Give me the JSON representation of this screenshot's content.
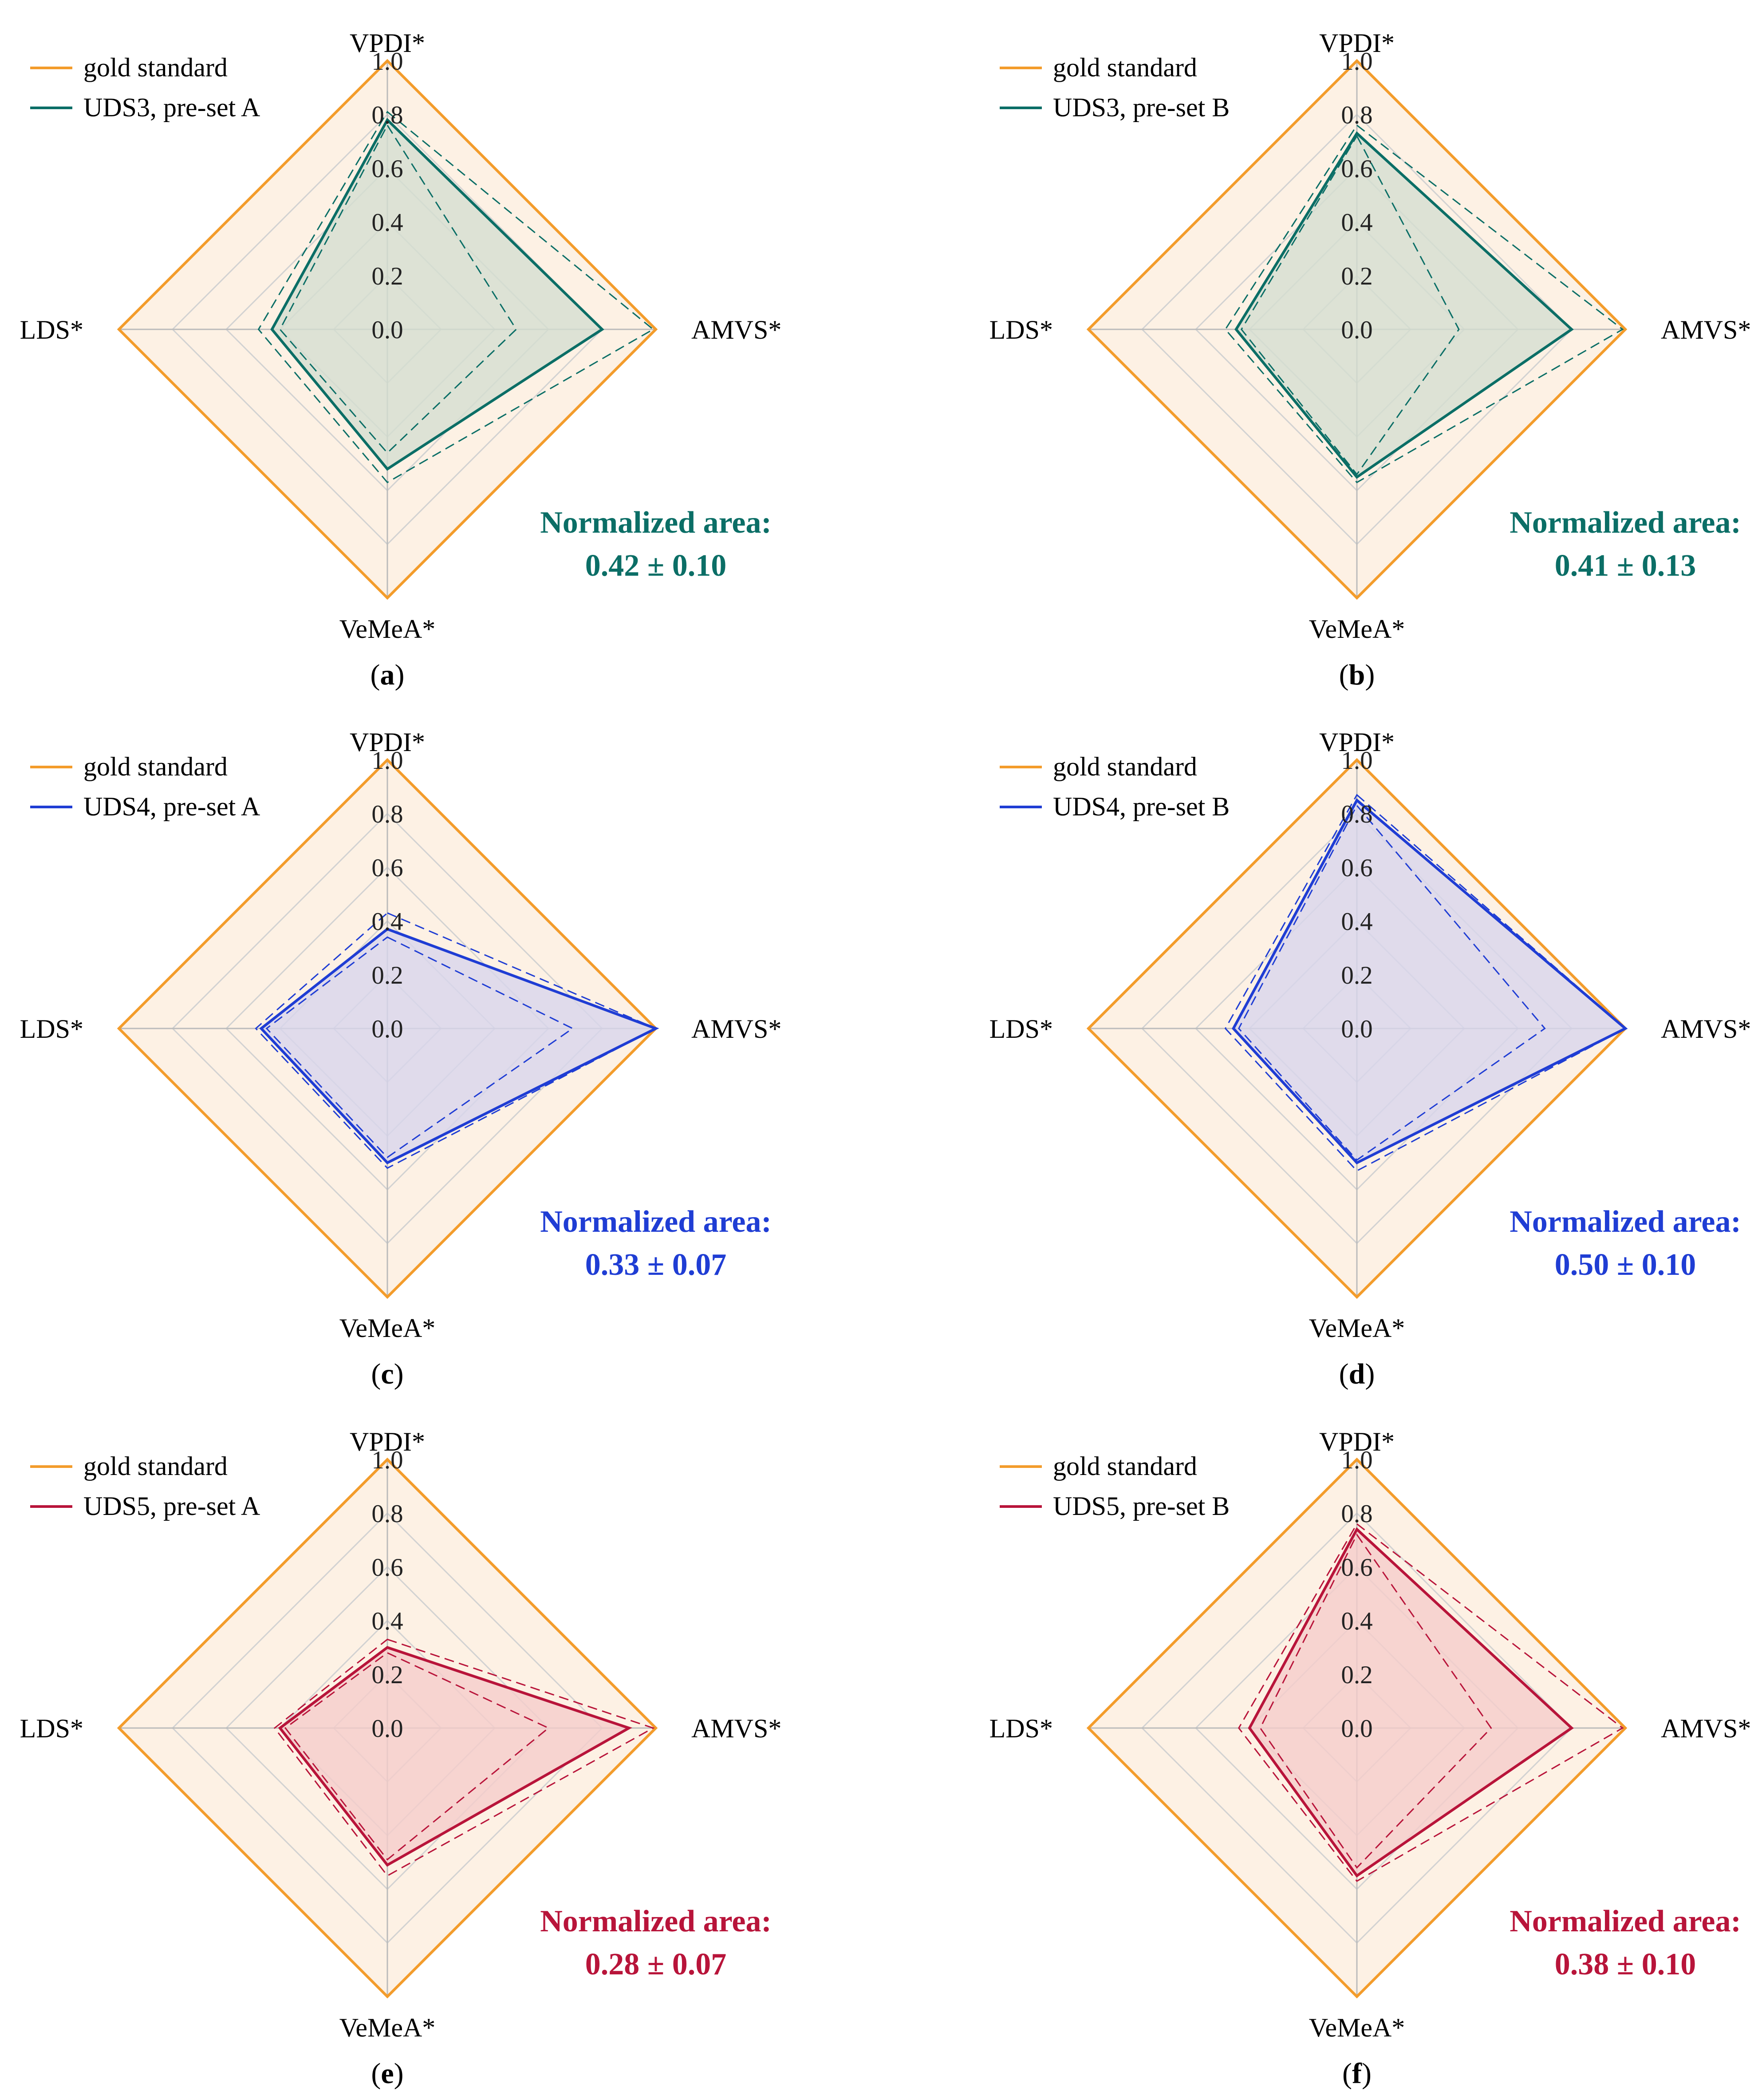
{
  "colors": {
    "gold": "#F39C2B",
    "gold_fill": "#FDF1E4",
    "grid": "#D2D2D2",
    "spoke": "#BBBBBB",
    "teal": "#0B6E66",
    "teal_fill": "#D5DFD1",
    "blue": "#1F3DD4",
    "blue_fill": "#D8D6EC",
    "red": "#B8143A",
    "red_fill": "#F5CDCB"
  },
  "chart_data": [
    {
      "type": "radar",
      "panel_label": "a",
      "axes": [
        "VPDI*",
        "AMVS*",
        "VeMeA*",
        "LDS*"
      ],
      "ticks": [
        "0.0",
        "0.2",
        "0.4",
        "0.6",
        "0.8",
        "1.0"
      ],
      "range": [
        0,
        1
      ],
      "legend": [
        "gold standard",
        "UDS3, pre-set A"
      ],
      "color_key": "teal",
      "series": [
        {
          "name": "gold standard",
          "values": [
            1.0,
            1.0,
            1.0,
            1.0
          ]
        },
        {
          "name": "UDS3, pre-set A",
          "values": [
            0.78,
            0.8,
            0.52,
            0.43
          ]
        },
        {
          "name": "lower bound",
          "values": [
            0.76,
            0.48,
            0.46,
            0.4
          ]
        },
        {
          "name": "upper bound",
          "values": [
            0.81,
            0.99,
            0.57,
            0.48
          ]
        }
      ],
      "area_title": "Normalized area:",
      "area_value": "0.42 ± 0.10"
    },
    {
      "type": "radar",
      "panel_label": "b",
      "axes": [
        "VPDI*",
        "AMVS*",
        "VeMeA*",
        "LDS*"
      ],
      "ticks": [
        "0.0",
        "0.2",
        "0.4",
        "0.6",
        "0.8",
        "1.0"
      ],
      "range": [
        0,
        1
      ],
      "legend": [
        "gold standard",
        "UDS3, pre-set B"
      ],
      "color_key": "teal",
      "series": [
        {
          "name": "gold standard",
          "values": [
            1.0,
            1.0,
            1.0,
            1.0
          ]
        },
        {
          "name": "UDS3, pre-set B",
          "values": [
            0.73,
            0.8,
            0.55,
            0.45
          ]
        },
        {
          "name": "lower bound",
          "values": [
            0.72,
            0.38,
            0.54,
            0.43
          ]
        },
        {
          "name": "upper bound",
          "values": [
            0.76,
            0.99,
            0.57,
            0.49
          ]
        }
      ],
      "area_title": "Normalized area:",
      "area_value": "0.41 ± 0.13"
    },
    {
      "type": "radar",
      "panel_label": "c",
      "axes": [
        "VPDI*",
        "AMVS*",
        "VeMeA*",
        "LDS*"
      ],
      "ticks": [
        "0.0",
        "0.2",
        "0.4",
        "0.6",
        "0.8",
        "1.0"
      ],
      "range": [
        0,
        1
      ],
      "legend": [
        "gold standard",
        "UDS4, pre-set A"
      ],
      "color_key": "blue",
      "series": [
        {
          "name": "gold standard",
          "values": [
            1.0,
            1.0,
            1.0,
            1.0
          ]
        },
        {
          "name": "UDS4, pre-set A",
          "values": [
            0.37,
            1.0,
            0.5,
            0.47
          ]
        },
        {
          "name": "lower bound",
          "values": [
            0.34,
            0.69,
            0.48,
            0.45
          ]
        },
        {
          "name": "upper bound",
          "values": [
            0.43,
            1.0,
            0.52,
            0.49
          ]
        }
      ],
      "area_title": "Normalized area:",
      "area_value": "0.33 ± 0.07"
    },
    {
      "type": "radar",
      "panel_label": "d",
      "axes": [
        "VPDI*",
        "AMVS*",
        "VeMeA*",
        "LDS*"
      ],
      "ticks": [
        "0.0",
        "0.2",
        "0.4",
        "0.6",
        "0.8",
        "1.0"
      ],
      "range": [
        0,
        1
      ],
      "legend": [
        "gold standard",
        "UDS4, pre-set B"
      ],
      "color_key": "blue",
      "series": [
        {
          "name": "gold standard",
          "values": [
            1.0,
            1.0,
            1.0,
            1.0
          ]
        },
        {
          "name": "UDS4, pre-set B",
          "values": [
            0.85,
            1.0,
            0.5,
            0.46
          ]
        },
        {
          "name": "lower bound",
          "values": [
            0.83,
            0.7,
            0.49,
            0.44
          ]
        },
        {
          "name": "upper bound",
          "values": [
            0.87,
            1.0,
            0.53,
            0.49
          ]
        }
      ],
      "area_title": "Normalized area:",
      "area_value": "0.50 ± 0.10"
    },
    {
      "type": "radar",
      "panel_label": "e",
      "axes": [
        "VPDI*",
        "AMVS*",
        "VeMeA*",
        "LDS*"
      ],
      "ticks": [
        "0.0",
        "0.2",
        "0.4",
        "0.6",
        "0.8",
        "1.0"
      ],
      "range": [
        0,
        1
      ],
      "legend": [
        "gold standard",
        "UDS5, pre-set A"
      ],
      "color_key": "red",
      "series": [
        {
          "name": "gold standard",
          "values": [
            1.0,
            1.0,
            1.0,
            1.0
          ]
        },
        {
          "name": "UDS5, pre-set A",
          "values": [
            0.3,
            0.9,
            0.51,
            0.4
          ]
        },
        {
          "name": "lower bound",
          "values": [
            0.28,
            0.6,
            0.49,
            0.38
          ]
        },
        {
          "name": "upper bound",
          "values": [
            0.33,
            0.99,
            0.55,
            0.42
          ]
        }
      ],
      "area_title": "Normalized area:",
      "area_value": "0.28 ± 0.07"
    },
    {
      "type": "radar",
      "panel_label": "f",
      "axes": [
        "VPDI*",
        "AMVS*",
        "VeMeA*",
        "LDS*"
      ],
      "ticks": [
        "0.0",
        "0.2",
        "0.4",
        "0.6",
        "0.8",
        "1.0"
      ],
      "range": [
        0,
        1
      ],
      "legend": [
        "gold standard",
        "UDS5, pre-set B"
      ],
      "color_key": "red",
      "series": [
        {
          "name": "gold standard",
          "values": [
            1.0,
            1.0,
            1.0,
            1.0
          ]
        },
        {
          "name": "UDS5, pre-set B",
          "values": [
            0.74,
            0.8,
            0.55,
            0.4
          ]
        },
        {
          "name": "lower bound",
          "values": [
            0.72,
            0.5,
            0.52,
            0.36
          ]
        },
        {
          "name": "upper bound",
          "values": [
            0.76,
            0.99,
            0.57,
            0.44
          ]
        }
      ],
      "area_title": "Normalized area:",
      "area_value": "0.38 ± 0.10"
    }
  ]
}
